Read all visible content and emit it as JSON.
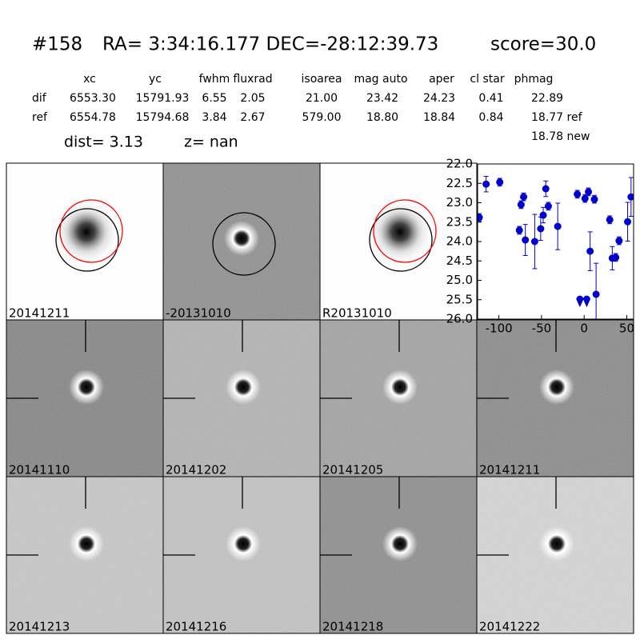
{
  "header": {
    "id": "#158",
    "coords": "RA= 3:34:16.177 DEC=-28:12:39.73",
    "score": "score=30.0"
  },
  "table": {
    "columns": [
      "xc",
      "yc",
      "fwhm",
      "fluxrad",
      "isoarea",
      "mag auto",
      "aper",
      "cl star",
      "phmag"
    ],
    "rows": [
      [
        "dif",
        "6553.30",
        "15791.93",
        "6.55",
        "2.05",
        "21.00",
        "23.42",
        "24.23",
        "0.41",
        "22.89"
      ],
      [
        "ref",
        "6554.78",
        "15794.68",
        "3.84",
        "2.67",
        "579.00",
        "18.80",
        "18.84",
        "0.84",
        "18.77 ref"
      ]
    ],
    "extra": "18.78 new"
  },
  "dist": "dist=  3.13",
  "z": "z=   nan",
  "stamps": [
    {
      "label": "20141211"
    },
    {
      "label": "-20131010"
    },
    {
      "label": "R20131010"
    },
    {
      "label": "20141110"
    },
    {
      "label": "20141202"
    },
    {
      "label": "20141205"
    },
    {
      "label": "20141211",
      "label_color": "#ff0000"
    },
    {
      "label": "20141213"
    },
    {
      "label": "20141216"
    },
    {
      "label": "20141218"
    },
    {
      "label": "20141222"
    }
  ],
  "light_curve": {
    "type": "scatter",
    "color": "#0000cc",
    "inverted_y": true,
    "xlim": [
      -125,
      58
    ],
    "ylim": [
      26,
      22
    ],
    "xticks": [
      -100,
      -50,
      0,
      50
    ],
    "yticks": [
      {
        "value": 22,
        "label": "22.0"
      },
      22.5,
      {
        "value": 23,
        "label": "23.0"
      },
      23.5,
      {
        "value": 24,
        "label": "24.0"
      },
      24.5,
      {
        "value": 25,
        "label": "25.0"
      },
      25.5,
      {
        "value": 26,
        "label": "26.0"
      }
    ],
    "x": [
      -123,
      -115,
      -99,
      -76,
      -74,
      -71,
      -69,
      -58,
      -51,
      -48,
      -45,
      -42,
      -31,
      -8,
      1,
      5,
      7,
      12,
      14,
      30,
      33,
      37,
      41,
      51,
      55
    ],
    "values": [
      23.38,
      22.52,
      22.47,
      23.71,
      23.05,
      22.85,
      23.96,
      24.0,
      23.67,
      23.32,
      22.64,
      23.09,
      23.61,
      22.78,
      22.89,
      22.72,
      24.25,
      22.91,
      25.36,
      23.44,
      24.43,
      24.41,
      23.98,
      23.49,
      22.85
    ],
    "errors": [
      0.1,
      0.2,
      0.1,
      0.1,
      0.1,
      0.1,
      0.4,
      0.7,
      0.3,
      0.2,
      0.2,
      0.1,
      0.6,
      0.1,
      0.1,
      0.1,
      0.5,
      0.1,
      0.8,
      0.1,
      0.3,
      0.1,
      0.1,
      0.5,
      0.5
    ],
    "limits": {
      "x": [
        -5,
        3
      ],
      "values": [
        25.55,
        25.55
      ]
    }
  }
}
